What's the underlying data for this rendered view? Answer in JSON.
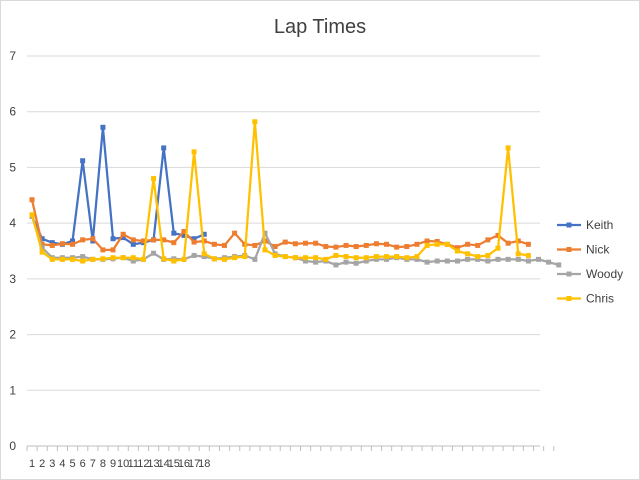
{
  "chart_data": {
    "type": "line",
    "title": "Lap Times",
    "xlabel": "",
    "ylabel": "",
    "ylim": [
      0,
      7
    ],
    "y_ticks": [
      "0",
      "1",
      "2",
      "3",
      "4",
      "5",
      "6",
      "7"
    ],
    "x_ticks": [
      "1",
      "2",
      "3",
      "4",
      "5",
      "6",
      "7",
      "8",
      "9",
      "10",
      "11",
      "12",
      "13",
      "14",
      "15",
      "16",
      "17",
      "18"
    ],
    "grid": true,
    "legend_position": "right",
    "series": [
      {
        "name": "Keith",
        "color": "#4472c4",
        "values": [
          4.12,
          3.72,
          3.65,
          3.62,
          3.68,
          5.12,
          3.68,
          5.72,
          3.72,
          3.74,
          3.62,
          3.65,
          3.7,
          5.35,
          3.82,
          3.78,
          3.72,
          3.8
        ]
      },
      {
        "name": "Nick",
        "color": "#ed7d31",
        "values": [
          4.42,
          3.62,
          3.6,
          3.63,
          3.62,
          3.7,
          3.72,
          3.52,
          3.52,
          3.8,
          3.7,
          3.68,
          3.7,
          3.7,
          3.65,
          3.85,
          3.66,
          3.68,
          3.62,
          3.6,
          3.82,
          3.62,
          3.6,
          3.68,
          3.58,
          3.66,
          3.63,
          3.64,
          3.64,
          3.58,
          3.57,
          3.6,
          3.58,
          3.6,
          3.63,
          3.62,
          3.57,
          3.58,
          3.62,
          3.68,
          3.67,
          3.62,
          3.56,
          3.62,
          3.6,
          3.7,
          3.78,
          3.64,
          3.68,
          3.62
        ]
      },
      {
        "name": "Woody",
        "color": "#a5a5a5",
        "values": [
          4.12,
          3.56,
          3.38,
          3.38,
          3.38,
          3.4,
          3.35,
          3.35,
          3.36,
          3.38,
          3.32,
          3.35,
          3.46,
          3.35,
          3.36,
          3.35,
          3.42,
          3.4,
          3.36,
          3.38,
          3.4,
          3.42,
          3.35,
          3.82,
          3.45,
          3.4,
          3.38,
          3.32,
          3.3,
          3.32,
          3.25,
          3.3,
          3.28,
          3.32,
          3.35,
          3.35,
          3.38,
          3.35,
          3.35,
          3.3,
          3.32,
          3.32,
          3.32,
          3.35,
          3.35,
          3.32,
          3.35,
          3.35,
          3.35,
          3.32,
          3.35,
          3.3,
          3.25
        ]
      },
      {
        "name": "Chris",
        "color": "#ffc000",
        "values": [
          4.15,
          3.48,
          3.35,
          3.35,
          3.35,
          3.32,
          3.35,
          3.36,
          3.38,
          3.38,
          3.38,
          3.35,
          4.8,
          3.36,
          3.32,
          3.35,
          5.28,
          3.45,
          3.36,
          3.35,
          3.38,
          3.4,
          5.82,
          3.52,
          3.42,
          3.4,
          3.38,
          3.38,
          3.38,
          3.35,
          3.42,
          3.4,
          3.38,
          3.38,
          3.4,
          3.4,
          3.4,
          3.38,
          3.4,
          3.6,
          3.62,
          3.62,
          3.5,
          3.45,
          3.4,
          3.42,
          3.55,
          5.35,
          3.45,
          3.42
        ]
      }
    ]
  }
}
